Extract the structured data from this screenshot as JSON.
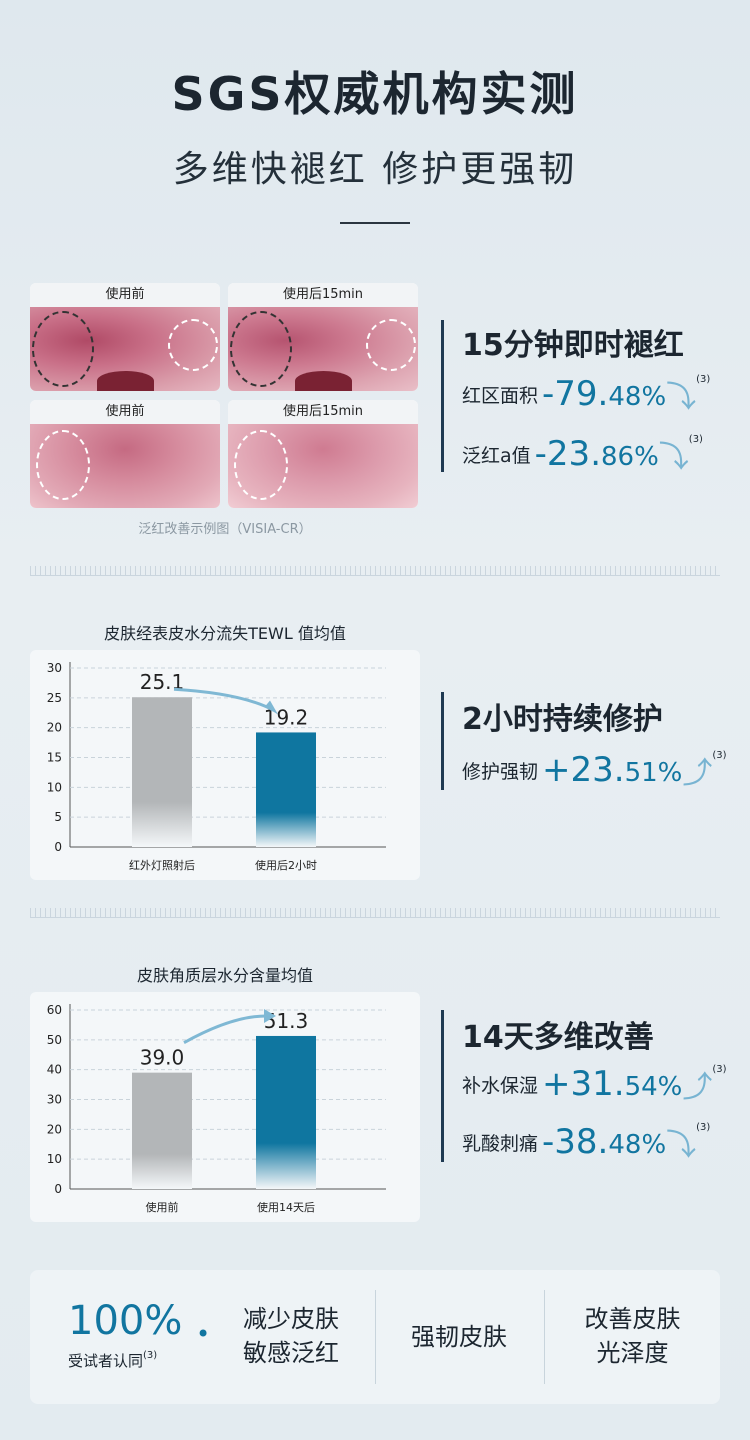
{
  "header": {
    "title": "SGS权威机构实测",
    "subtitle": "多维快褪红 修护更强韧"
  },
  "photos": {
    "caption_before": "使用前",
    "caption_after": "使用后15min",
    "footnote": "泛红改善示例图（VISIA-CR）"
  },
  "section1": {
    "heading": "15分钟即时褪红",
    "items": [
      {
        "label": "红区面积",
        "value_main": "-79.",
        "value_small": "48%",
        "sup": "(3)",
        "icon": "arrow-down-icon"
      },
      {
        "label": "泛红a值",
        "value_main": "-23.",
        "value_small": "86%",
        "sup": "(3)",
        "icon": "arrow-down-icon"
      }
    ]
  },
  "section2": {
    "heading": "2小时持续修护",
    "items": [
      {
        "label": "修护强韧",
        "value_main": "+23.",
        "value_small": "51%",
        "sup": "(3)",
        "icon": "arrow-up-icon"
      }
    ]
  },
  "section3": {
    "heading": "14天多维改善",
    "items": [
      {
        "label": "补水保湿",
        "value_main": "+31.",
        "value_small": "54%",
        "sup": "(3)",
        "icon": "arrow-up-icon"
      },
      {
        "label": "乳酸刺痛",
        "value_main": "-38.",
        "value_small": "48%",
        "sup": "(3)",
        "icon": "arrow-down-icon"
      }
    ]
  },
  "chart_data": [
    {
      "type": "bar",
      "title": "皮肤经表皮水分流失TEWL 值均值",
      "categories": [
        "红外灯照射后",
        "使用后2小时"
      ],
      "values": [
        25.1,
        19.2
      ],
      "value_labels": [
        "25.1",
        "19.2"
      ],
      "ylim": [
        0,
        30
      ],
      "yticks": [
        0,
        5,
        10,
        15,
        20,
        25,
        30
      ],
      "grid": true,
      "colors": [
        "#b3b6b8",
        "#0f76a0"
      ]
    },
    {
      "type": "bar",
      "title": "皮肤角质层水分含量均值",
      "categories": [
        "使用前",
        "使用14天后"
      ],
      "values": [
        39.0,
        51.3
      ],
      "value_labels": [
        "39.0",
        "51.3"
      ],
      "ylim": [
        0,
        60
      ],
      "yticks": [
        0,
        10,
        20,
        30,
        40,
        50,
        60
      ],
      "grid": true,
      "colors": [
        "#b3b6b8",
        "#0f76a0"
      ]
    }
  ],
  "bottom": {
    "percent": "100%",
    "percent_label": "受试者认同",
    "sup": "(3)",
    "bullet": "•",
    "features": [
      [
        "减少皮肤",
        "敏感泛红"
      ],
      [
        "强韧皮肤"
      ],
      [
        "改善皮肤",
        "光泽度"
      ]
    ]
  },
  "colors": {
    "accent": "#1175a0",
    "gray_bar": "#b3b6b8",
    "dark": "#1c2630"
  }
}
